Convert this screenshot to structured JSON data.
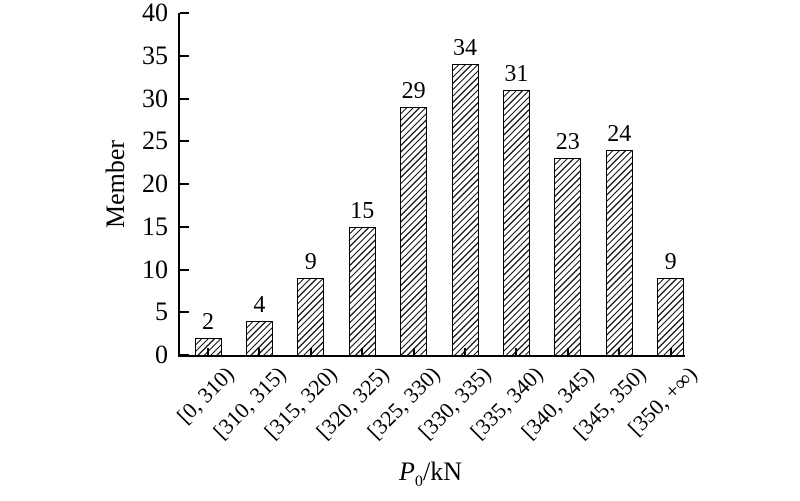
{
  "figure": {
    "background": "#ffffff",
    "ink_color": "#000000",
    "bar_fill": "#ffffff",
    "bar_hatch": "forward-diagonal"
  },
  "chart_data": {
    "type": "bar",
    "title": "",
    "categories": [
      "[0, 310)",
      "[310, 315)",
      "[315, 320)",
      "[320, 325)",
      "[325, 330)",
      "[330, 335)",
      "[335, 340)",
      "[340, 345)",
      "[345, 350)",
      "[350, +∞)"
    ],
    "values": [
      2,
      4,
      9,
      15,
      29,
      34,
      31,
      23,
      24,
      9
    ],
    "ylabel": "Member",
    "xlabel": "P0/kN",
    "xlabel_parts": {
      "var": "P",
      "sub": "0",
      "unit": "/kN"
    },
    "ylim": [
      0,
      40
    ],
    "yticks": [
      "0",
      "5",
      "10",
      "15",
      "20",
      "25",
      "30",
      "35",
      "40"
    ],
    "grid": false,
    "legend": null,
    "bar_labels_shown": true,
    "x_tick_rotation_deg": 45
  }
}
